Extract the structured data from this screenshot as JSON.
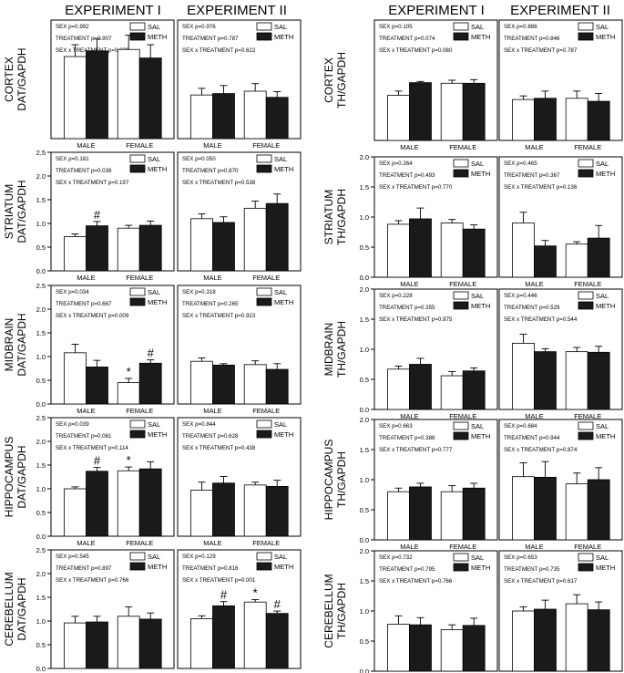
{
  "headers": {
    "dat_exp1": "EXPERIMENT I",
    "dat_exp2": "EXPERIMENT II",
    "th_exp1": "EXPERIMENT I",
    "th_exp2": "EXPERIMENT II"
  },
  "colors": {
    "sal": "#ffffff",
    "meth": "#1a1a1a",
    "axis": "#000000"
  },
  "chart_data": [
    {
      "type": "bar",
      "region": "CORTEX",
      "ylabel_region": "CORTEX",
      "ylabel_measure": "DAT/GAPDH",
      "experiment": "EXPERIMENT I",
      "categories": [
        "MALE",
        "FEMALE"
      ],
      "ylim": [
        0,
        2.5
      ],
      "yticks": [],
      "series": [
        {
          "name": "SAL",
          "values": [
            1.73,
            1.88
          ],
          "errors": [
            0.25,
            0.3
          ]
        },
        {
          "name": "METH",
          "values": [
            1.85,
            1.7
          ],
          "errors": [
            0.25,
            0.28
          ]
        }
      ],
      "stats": [
        "SEX p=0.992",
        "TREATMENT p=0.907",
        "SEX x TREATMENT p=0.629"
      ],
      "annotations": []
    },
    {
      "type": "bar",
      "region": "CORTEX",
      "experiment": "EXPERIMENT II",
      "categories": [
        "MALE",
        "FEMALE"
      ],
      "ylim": [
        0,
        2.5
      ],
      "yticks": [],
      "series": [
        {
          "name": "SAL",
          "values": [
            0.92,
            1.0
          ],
          "errors": [
            0.14,
            0.16
          ]
        },
        {
          "name": "METH",
          "values": [
            0.95,
            0.87
          ],
          "errors": [
            0.17,
            0.12
          ]
        }
      ],
      "stats": [
        "SEX p=0.976",
        "TREATMENT p=0.787",
        "SEX x TREATMENT p=0.622"
      ],
      "annotations": []
    },
    {
      "type": "bar",
      "region": "STRIATUM",
      "ylabel_region": "STRIATUM",
      "ylabel_measure": "DAT/GAPDH",
      "experiment": "EXPERIMENT I",
      "categories": [
        "MALE",
        "FEMALE"
      ],
      "ylim": [
        0,
        2.5
      ],
      "yticks": [
        "0.0",
        "0.5",
        "1.0",
        "1.5",
        "2.0",
        "2.5"
      ],
      "series": [
        {
          "name": "SAL",
          "values": [
            0.72,
            0.9
          ],
          "errors": [
            0.06,
            0.06
          ]
        },
        {
          "name": "METH",
          "values": [
            0.95,
            0.96
          ],
          "errors": [
            0.09,
            0.09
          ]
        }
      ],
      "stats": [
        "SEX p=0.181",
        "TREATMENT p=0.039",
        "SEX x TREATMENT p=0.197"
      ],
      "annotations": [
        {
          "text": "#",
          "group": 0,
          "series": 1
        }
      ]
    },
    {
      "type": "bar",
      "region": "STRIATUM",
      "experiment": "EXPERIMENT II",
      "categories": [
        "MALE",
        "FEMALE"
      ],
      "ylim": [
        0,
        2.5
      ],
      "yticks": [],
      "series": [
        {
          "name": "SAL",
          "values": [
            1.1,
            1.32
          ],
          "errors": [
            0.1,
            0.15
          ]
        },
        {
          "name": "METH",
          "values": [
            1.02,
            1.42
          ],
          "errors": [
            0.12,
            0.2
          ]
        }
      ],
      "stats": [
        "SEX p=0.050",
        "TREATMENT p=0.870",
        "SEX x TREATMENT p=0.538"
      ],
      "annotations": []
    },
    {
      "type": "bar",
      "region": "MIDBRAIN",
      "ylabel_region": "MIDBRAIN",
      "ylabel_measure": "DAT/GAPDH",
      "experiment": "EXPERIMENT I",
      "categories": [
        "MALE",
        "FEMALE"
      ],
      "ylim": [
        0,
        2.5
      ],
      "yticks": [
        "0.0",
        "0.5",
        "1.0",
        "1.5",
        "2.0",
        "2.5"
      ],
      "series": [
        {
          "name": "SAL",
          "values": [
            1.08,
            0.45
          ],
          "errors": [
            0.18,
            0.09
          ]
        },
        {
          "name": "METH",
          "values": [
            0.78,
            0.86
          ],
          "errors": [
            0.14,
            0.07
          ]
        }
      ],
      "stats": [
        "SEX p=0.034",
        "TREATMENT p=0.667",
        "SEX x TREATMENT p=0.009"
      ],
      "annotations": [
        {
          "text": "*",
          "group": 1,
          "series": 0
        },
        {
          "text": "#",
          "group": 1,
          "series": 1
        }
      ]
    },
    {
      "type": "bar",
      "region": "MIDBRAIN",
      "experiment": "EXPERIMENT II",
      "categories": [
        "MALE",
        "FEMALE"
      ],
      "ylim": [
        0,
        2.5
      ],
      "yticks": [],
      "series": [
        {
          "name": "SAL",
          "values": [
            0.9,
            0.83
          ],
          "errors": [
            0.07,
            0.08
          ]
        },
        {
          "name": "METH",
          "values": [
            0.82,
            0.73
          ],
          "errors": [
            0.03,
            0.12
          ]
        }
      ],
      "stats": [
        "SEX p=0.318",
        "TREATMENT p=0.265",
        "SEX x TREATMENT p=0.923"
      ],
      "annotations": []
    },
    {
      "type": "bar",
      "region": "HIPPOCAMPUS",
      "ylabel_region": "HIPPOCAMPUS",
      "ylabel_measure": "DAT/GAPDH",
      "experiment": "EXPERIMENT I",
      "categories": [
        "MALE",
        "FEMALE"
      ],
      "ylim": [
        0,
        2.5
      ],
      "yticks": [
        "0.0",
        "0.5",
        "1.0",
        "1.5",
        "2.0",
        "2.5"
      ],
      "series": [
        {
          "name": "SAL",
          "values": [
            1.0,
            1.38
          ],
          "errors": [
            0.04,
            0.08
          ]
        },
        {
          "name": "METH",
          "values": [
            1.37,
            1.42
          ],
          "errors": [
            0.08,
            0.15
          ]
        }
      ],
      "stats": [
        "SEX p=0.039",
        "TREATMENT p=0.061",
        "SEX x TREATMENT p=0.114"
      ],
      "annotations": [
        {
          "text": "#",
          "group": 0,
          "series": 1
        },
        {
          "text": "*",
          "group": 1,
          "series": 0
        }
      ]
    },
    {
      "type": "bar",
      "region": "HIPPOCAMPUS",
      "experiment": "EXPERIMENT II",
      "categories": [
        "MALE",
        "FEMALE"
      ],
      "ylim": [
        0,
        2.5
      ],
      "yticks": [],
      "series": [
        {
          "name": "SAL",
          "values": [
            0.97,
            1.08
          ],
          "errors": [
            0.17,
            0.06
          ]
        },
        {
          "name": "METH",
          "values": [
            1.12,
            1.05
          ],
          "errors": [
            0.14,
            0.13
          ]
        }
      ],
      "stats": [
        "SEX p=0.844",
        "TREATMENT p=0.628",
        "SEX x TREATMENT p=0.438"
      ],
      "annotations": []
    },
    {
      "type": "bar",
      "region": "CEREBELLUM",
      "ylabel_region": "CEREBELLUM",
      "ylabel_measure": "DAT/GAPDH",
      "experiment": "EXPERIMENT I",
      "categories": [
        "MALE",
        "FEMALE"
      ],
      "ylim": [
        0,
        2.5
      ],
      "yticks": [
        "0.0",
        "0.5",
        "1.0",
        "1.5",
        "2.0",
        "2.5"
      ],
      "series": [
        {
          "name": "SAL",
          "values": [
            0.96,
            1.1
          ],
          "errors": [
            0.14,
            0.2
          ]
        },
        {
          "name": "METH",
          "values": [
            0.98,
            1.04
          ],
          "errors": [
            0.12,
            0.13
          ]
        }
      ],
      "stats": [
        "SEX p=0.545",
        "TREATMENT p=0.897",
        "SEX x TREATMENT p=0.766"
      ],
      "annotations": []
    },
    {
      "type": "bar",
      "region": "CEREBELLUM",
      "experiment": "EXPERIMENT II",
      "categories": [
        "MALE",
        "FEMALE"
      ],
      "ylim": [
        0,
        2.5
      ],
      "yticks": [],
      "series": [
        {
          "name": "SAL",
          "values": [
            1.05,
            1.4
          ],
          "errors": [
            0.06,
            0.05
          ]
        },
        {
          "name": "METH",
          "values": [
            1.32,
            1.16
          ],
          "errors": [
            0.09,
            0.05
          ]
        }
      ],
      "stats": [
        "SEX p=0.129",
        "TREATMENT p=0.816",
        "SEX x TREATMENT p=0.001"
      ],
      "annotations": [
        {
          "text": "#",
          "group": 0,
          "series": 1
        },
        {
          "text": "*",
          "group": 1,
          "series": 0
        },
        {
          "text": "#",
          "group": 1,
          "series": 1
        }
      ]
    },
    {
      "type": "bar",
      "region": "CORTEX",
      "ylabel_region": "CORTEX",
      "ylabel_measure": "TH/GAPDH",
      "experiment": "EXPERIMENT I",
      "categories": [
        "MALE",
        "FEMALE"
      ],
      "ylim": [
        0,
        2.0
      ],
      "yticks": [],
      "series": [
        {
          "name": "SAL",
          "values": [
            0.75,
            0.95
          ],
          "errors": [
            0.07,
            0.05
          ]
        },
        {
          "name": "METH",
          "values": [
            0.96,
            0.95
          ],
          "errors": [
            0.02,
            0.06
          ]
        }
      ],
      "stats": [
        "SEX p=0.105",
        "TREATMENT p=0.074",
        "SEX x TREATMENT p=0.080"
      ],
      "annotations": []
    },
    {
      "type": "bar",
      "region": "CORTEX",
      "experiment": "EXPERIMENT II",
      "categories": [
        "MALE",
        "FEMALE"
      ],
      "ylim": [
        0,
        2.0
      ],
      "yticks": [],
      "series": [
        {
          "name": "SAL",
          "values": [
            0.68,
            0.7
          ],
          "errors": [
            0.06,
            0.12
          ]
        },
        {
          "name": "METH",
          "values": [
            0.7,
            0.65
          ],
          "errors": [
            0.12,
            0.13
          ]
        }
      ],
      "stats": [
        "SEX p=0.886",
        "TREATMENT p=0.846",
        "SEX x TREATMENT p=0.787"
      ],
      "annotations": []
    },
    {
      "type": "bar",
      "region": "STRIATUM",
      "ylabel_region": "STRIATUM",
      "ylabel_measure": "TH/GAPDH",
      "experiment": "EXPERIMENT I",
      "categories": [
        "MALE",
        "FEMALE"
      ],
      "ylim": [
        0,
        2.0
      ],
      "yticks": [
        "0.0",
        "0.5",
        "1.0",
        "1.5",
        "2.0"
      ],
      "series": [
        {
          "name": "SAL",
          "values": [
            0.88,
            0.9
          ],
          "errors": [
            0.06,
            0.06
          ]
        },
        {
          "name": "METH",
          "values": [
            0.97,
            0.8
          ],
          "errors": [
            0.18,
            0.07
          ]
        }
      ],
      "stats": [
        "SEX p=0.264",
        "TREATMENT p=0.493",
        "SEX x TREATMENT p=0.770"
      ],
      "annotations": []
    },
    {
      "type": "bar",
      "region": "STRIATUM",
      "experiment": "EXPERIMENT II",
      "categories": [
        "MALE",
        "FEMALE"
      ],
      "ylim": [
        0,
        2.0
      ],
      "yticks": [],
      "series": [
        {
          "name": "SAL",
          "values": [
            0.9,
            0.55
          ],
          "errors": [
            0.18,
            0.04
          ]
        },
        {
          "name": "METH",
          "values": [
            0.52,
            0.65
          ],
          "errors": [
            0.09,
            0.21
          ]
        }
      ],
      "stats": [
        "SEX p=0.465",
        "TREATMENT p=0.367",
        "SEX x TREATMENT p=0.136"
      ],
      "annotations": []
    },
    {
      "type": "bar",
      "region": "MIDBRAIN",
      "ylabel_region": "MIDBRAIN",
      "ylabel_measure": "TH/GAPDH",
      "experiment": "EXPERIMENT I",
      "categories": [
        "MALE",
        "FEMALE"
      ],
      "ylim": [
        0,
        2.0
      ],
      "yticks": [
        "0.0",
        "0.5",
        "1.0",
        "1.5",
        "2.0"
      ],
      "series": [
        {
          "name": "SAL",
          "values": [
            0.67,
            0.56
          ],
          "errors": [
            0.05,
            0.07
          ]
        },
        {
          "name": "METH",
          "values": [
            0.75,
            0.64
          ],
          "errors": [
            0.1,
            0.05
          ]
        }
      ],
      "stats": [
        "SEX p=0.228",
        "TREATMENT p=0.355",
        "SEX x TREATMENT p=0.975"
      ],
      "annotations": []
    },
    {
      "type": "bar",
      "region": "MIDBRAIN",
      "experiment": "EXPERIMENT II",
      "categories": [
        "MALE",
        "FEMALE"
      ],
      "ylim": [
        0,
        2.0
      ],
      "yticks": [],
      "series": [
        {
          "name": "SAL",
          "values": [
            1.1,
            0.96
          ],
          "errors": [
            0.15,
            0.07
          ]
        },
        {
          "name": "METH",
          "values": [
            0.96,
            0.95
          ],
          "errors": [
            0.05,
            0.1
          ]
        }
      ],
      "stats": [
        "SEX p=0.446",
        "TREATMENT p=0.529",
        "SEX x TREATMENT p=0.544"
      ],
      "annotations": []
    },
    {
      "type": "bar",
      "region": "HIPPOCAMPUS",
      "ylabel_region": "HIPPOCAMPUS",
      "ylabel_measure": "TH/GAPDH",
      "experiment": "EXPERIMENT I",
      "categories": [
        "MALE",
        "FEMALE"
      ],
      "ylim": [
        0,
        2.0
      ],
      "yticks": [
        "0.0",
        "0.5",
        "1.0",
        "1.5",
        "2.0"
      ],
      "series": [
        {
          "name": "SAL",
          "values": [
            0.8,
            0.8
          ],
          "errors": [
            0.06,
            0.1
          ]
        },
        {
          "name": "METH",
          "values": [
            0.88,
            0.86
          ],
          "errors": [
            0.06,
            0.08
          ]
        }
      ],
      "stats": [
        "SEX p=0.663",
        "TREATMENT p=0.388",
        "SEX x TREATMENT p=0.777"
      ],
      "annotations": []
    },
    {
      "type": "bar",
      "region": "HIPPOCAMPUS",
      "experiment": "EXPERIMENT II",
      "categories": [
        "MALE",
        "FEMALE"
      ],
      "ylim": [
        0,
        2.0
      ],
      "yticks": [],
      "series": [
        {
          "name": "SAL",
          "values": [
            1.05,
            0.93
          ],
          "errors": [
            0.23,
            0.18
          ]
        },
        {
          "name": "METH",
          "values": [
            1.04,
            1.0
          ],
          "errors": [
            0.26,
            0.2
          ]
        }
      ],
      "stats": [
        "SEX p=0.684",
        "TREATMENT p=0.944",
        "SEX x TREATMENT p=0.874"
      ],
      "annotations": []
    },
    {
      "type": "bar",
      "region": "CEREBELLUM",
      "ylabel_region": "CEREBELLUM",
      "ylabel_measure": "TH/GAPDH",
      "experiment": "EXPERIMENT I",
      "categories": [
        "MALE",
        "FEMALE"
      ],
      "ylim": [
        0,
        2.0
      ],
      "yticks": [
        "0.0",
        "0.5",
        "1.0",
        "1.5",
        "2.0"
      ],
      "series": [
        {
          "name": "SAL",
          "values": [
            0.78,
            0.69
          ],
          "errors": [
            0.14,
            0.08
          ]
        },
        {
          "name": "METH",
          "values": [
            0.77,
            0.76
          ],
          "errors": [
            0.12,
            0.12
          ]
        }
      ],
      "stats": [
        "SEX p=0.732",
        "TREATMENT p=0.795",
        "SEX x TREATMENT p=0.766"
      ],
      "annotations": []
    },
    {
      "type": "bar",
      "region": "CEREBELLUM",
      "experiment": "EXPERIMENT II",
      "categories": [
        "MALE",
        "FEMALE"
      ],
      "ylim": [
        0,
        2.0
      ],
      "yticks": [],
      "series": [
        {
          "name": "SAL",
          "values": [
            1.0,
            1.12
          ],
          "errors": [
            0.07,
            0.15
          ]
        },
        {
          "name": "METH",
          "values": [
            1.03,
            1.02
          ],
          "errors": [
            0.15,
            0.13
          ]
        }
      ],
      "stats": [
        "SEX p=0.653",
        "TREATMENT p=0.735",
        "SEX x TREATMENT p=0.617"
      ],
      "annotations": []
    }
  ]
}
